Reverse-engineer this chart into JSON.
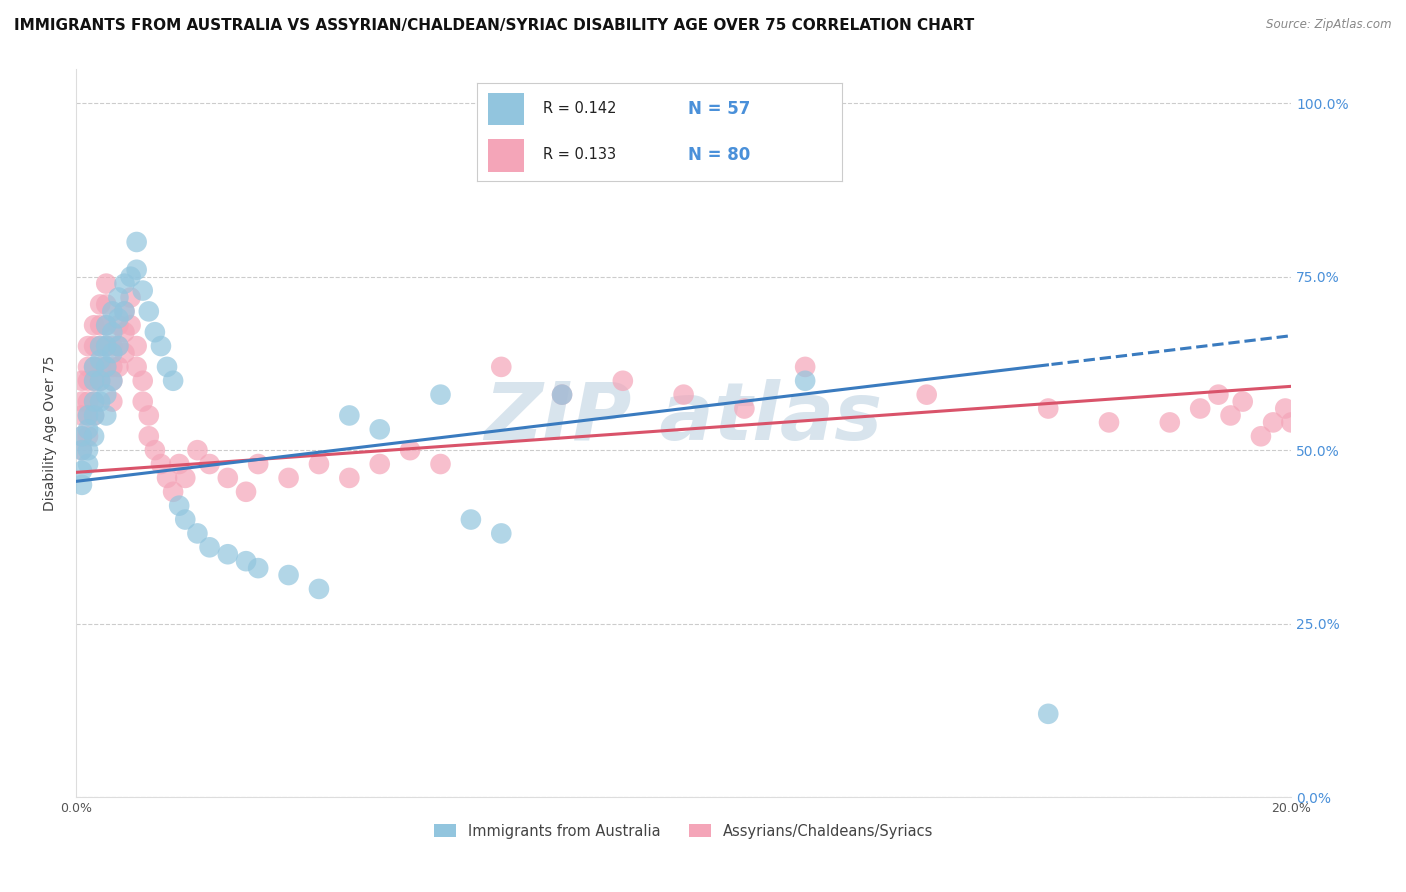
{
  "title": "IMMIGRANTS FROM AUSTRALIA VS ASSYRIAN/CHALDEAN/SYRIAC DISABILITY AGE OVER 75 CORRELATION CHART",
  "source": "Source: ZipAtlas.com",
  "ylabel": "Disability Age Over 75",
  "xlim": [
    0.0,
    0.2
  ],
  "ylim": [
    0.0,
    1.05
  ],
  "yticks_right": [
    0.0,
    0.25,
    0.5,
    0.75,
    1.0
  ],
  "ytick_labels_right": [
    "0.0%",
    "25.0%",
    "50.0%",
    "75.0%",
    "100.0%"
  ],
  "legend_label1": "Immigrants from Australia",
  "legend_label2": "Assyrians/Chaldeans/Syriacs",
  "color_blue": "#92c5de",
  "color_pink": "#f4a5b8",
  "line_color_blue": "#3a7bbf",
  "line_color_pink": "#d9536a",
  "watermark": "ZIP atlas",
  "watermark_color": "#aac4d8",
  "title_fontsize": 11,
  "axis_label_fontsize": 10,
  "tick_fontsize": 9,
  "blue_intercept": 0.455,
  "blue_slope": 1.05,
  "pink_intercept": 0.468,
  "pink_slope": 0.62,
  "scatter_blue_x": [
    0.001,
    0.001,
    0.001,
    0.001,
    0.002,
    0.002,
    0.002,
    0.002,
    0.003,
    0.003,
    0.003,
    0.003,
    0.003,
    0.004,
    0.004,
    0.004,
    0.004,
    0.005,
    0.005,
    0.005,
    0.005,
    0.005,
    0.006,
    0.006,
    0.006,
    0.006,
    0.007,
    0.007,
    0.007,
    0.008,
    0.008,
    0.009,
    0.01,
    0.01,
    0.011,
    0.012,
    0.013,
    0.014,
    0.015,
    0.016,
    0.017,
    0.018,
    0.02,
    0.022,
    0.025,
    0.028,
    0.03,
    0.035,
    0.04,
    0.045,
    0.05,
    0.06,
    0.065,
    0.07,
    0.08,
    0.12,
    0.16
  ],
  "scatter_blue_y": [
    0.5,
    0.52,
    0.47,
    0.45,
    0.55,
    0.53,
    0.5,
    0.48,
    0.62,
    0.6,
    0.57,
    0.55,
    0.52,
    0.65,
    0.63,
    0.6,
    0.57,
    0.68,
    0.65,
    0.62,
    0.58,
    0.55,
    0.7,
    0.67,
    0.64,
    0.6,
    0.72,
    0.69,
    0.65,
    0.74,
    0.7,
    0.75,
    0.8,
    0.76,
    0.73,
    0.7,
    0.67,
    0.65,
    0.62,
    0.6,
    0.42,
    0.4,
    0.38,
    0.36,
    0.35,
    0.34,
    0.33,
    0.32,
    0.3,
    0.55,
    0.53,
    0.58,
    0.4,
    0.38,
    0.58,
    0.6,
    0.12
  ],
  "scatter_pink_x": [
    0.001,
    0.001,
    0.001,
    0.001,
    0.001,
    0.002,
    0.002,
    0.002,
    0.002,
    0.002,
    0.002,
    0.003,
    0.003,
    0.003,
    0.003,
    0.003,
    0.003,
    0.004,
    0.004,
    0.004,
    0.004,
    0.004,
    0.005,
    0.005,
    0.005,
    0.005,
    0.005,
    0.006,
    0.006,
    0.006,
    0.006,
    0.007,
    0.007,
    0.007,
    0.008,
    0.008,
    0.008,
    0.009,
    0.009,
    0.01,
    0.01,
    0.011,
    0.011,
    0.012,
    0.012,
    0.013,
    0.014,
    0.015,
    0.016,
    0.017,
    0.018,
    0.02,
    0.022,
    0.025,
    0.028,
    0.03,
    0.035,
    0.04,
    0.045,
    0.05,
    0.055,
    0.06,
    0.07,
    0.08,
    0.09,
    0.1,
    0.11,
    0.12,
    0.14,
    0.16,
    0.17,
    0.18,
    0.185,
    0.188,
    0.19,
    0.192,
    0.195,
    0.197,
    0.199,
    0.2
  ],
  "scatter_pink_y": [
    0.6,
    0.57,
    0.55,
    0.52,
    0.5,
    0.65,
    0.62,
    0.6,
    0.57,
    0.55,
    0.52,
    0.68,
    0.65,
    0.62,
    0.6,
    0.57,
    0.55,
    0.71,
    0.68,
    0.65,
    0.62,
    0.6,
    0.74,
    0.71,
    0.68,
    0.65,
    0.62,
    0.65,
    0.62,
    0.6,
    0.57,
    0.68,
    0.65,
    0.62,
    0.7,
    0.67,
    0.64,
    0.72,
    0.68,
    0.65,
    0.62,
    0.6,
    0.57,
    0.55,
    0.52,
    0.5,
    0.48,
    0.46,
    0.44,
    0.48,
    0.46,
    0.5,
    0.48,
    0.46,
    0.44,
    0.48,
    0.46,
    0.48,
    0.46,
    0.48,
    0.5,
    0.48,
    0.62,
    0.58,
    0.6,
    0.58,
    0.56,
    0.62,
    0.58,
    0.56,
    0.54,
    0.54,
    0.56,
    0.58,
    0.55,
    0.57,
    0.52,
    0.54,
    0.56,
    0.54
  ]
}
